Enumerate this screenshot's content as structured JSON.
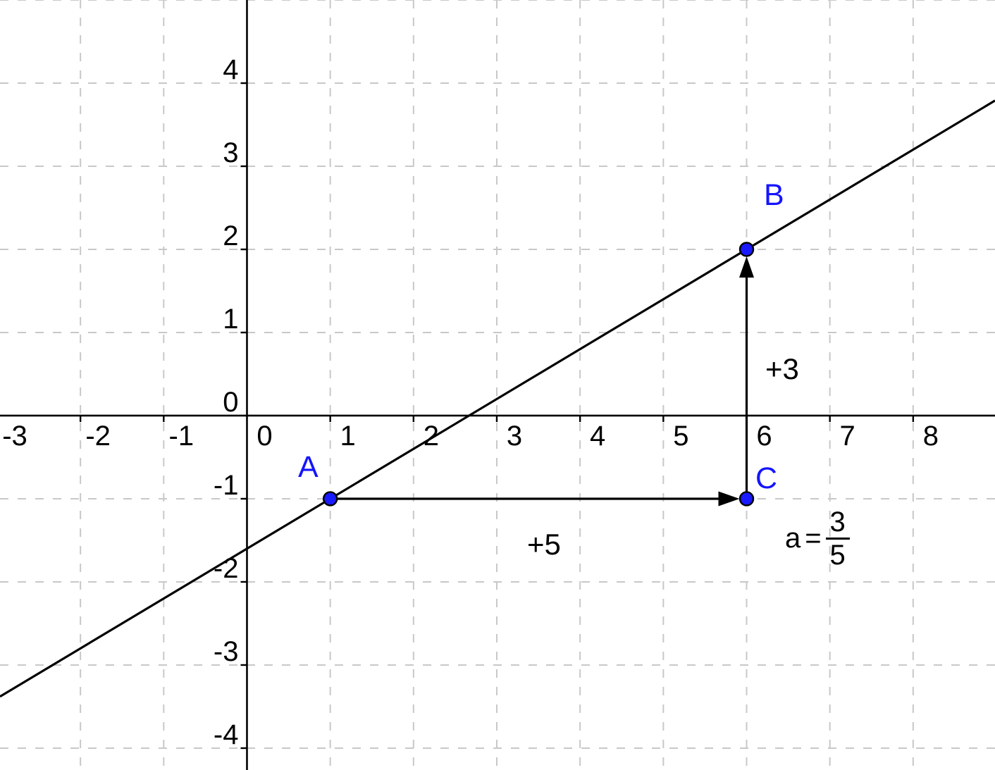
{
  "style": {
    "background": "#ffffff",
    "axis_color": "#000000",
    "grid_color": "#c8c8c8",
    "line_color": "#000000",
    "point_fill": "#1a1aff",
    "point_stroke": "#000000",
    "point_label_color": "#1414ff",
    "text_color": "#000000"
  },
  "chart_data": {
    "type": "line",
    "description": "Line through A(1,-1) and B(6,2); slope triangle arrows run +5 and rise +3 via C(6,-1); slope a = 3/5",
    "x_range": [
      -2.966,
      8.983
    ],
    "y_range": [
      -4.263,
      5.0
    ],
    "x_ticks": [
      -3,
      -2,
      -1,
      0,
      1,
      2,
      3,
      4,
      5,
      6,
      7,
      8
    ],
    "y_ticks": [
      -4,
      -3,
      -2,
      -1,
      0,
      1,
      2,
      3,
      4
    ],
    "grid_x": [
      -3,
      -2,
      -1,
      1,
      2,
      3,
      4,
      5,
      6,
      7,
      8
    ],
    "grid_y": [
      -4,
      -3,
      -2,
      -1,
      1,
      2,
      3,
      4,
      5
    ],
    "grid_style": "dashed",
    "legend": "none",
    "line": {
      "slope": 0.6,
      "y_intercept": -1.6
    },
    "points": [
      {
        "label": "A",
        "x": 1,
        "y": -1
      },
      {
        "label": "B",
        "x": 6,
        "y": 2
      },
      {
        "label": "C",
        "x": 6,
        "y": -1
      }
    ],
    "arrows": [
      {
        "name": "run-arrow",
        "label": "+5",
        "from": [
          1,
          -1
        ],
        "to": [
          6,
          -1
        ]
      },
      {
        "name": "rise-arrow",
        "label": "+3",
        "from": [
          6,
          -1
        ],
        "to": [
          6,
          2
        ]
      }
    ]
  },
  "labels": {
    "point_a": "A",
    "point_b": "B",
    "point_c": "C",
    "run": "+5",
    "rise": "+3",
    "slope_symbol": "a",
    "slope_equals": "=",
    "slope_numerator": "3",
    "slope_denominator": "5"
  }
}
